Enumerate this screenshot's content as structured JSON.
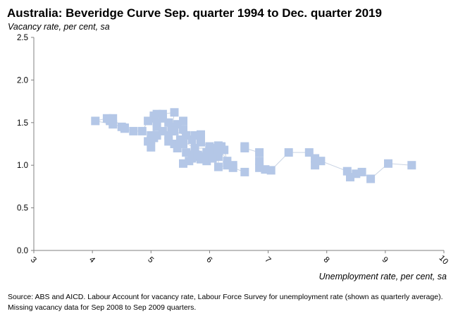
{
  "chart_data": {
    "type": "scatter",
    "title": "Australia: Beveridge Curve Sep. quarter 1994 to Dec. quarter 2019",
    "ylabel": "Vacancy rate, per cent, sa",
    "xlabel": "Unemployment rate, per cent, sa",
    "source": "Source: ABS and AICD.  Labour Account for vacancy rate, Labour Force Survey for unemployment rate (shown as quarterly average).  Missing vacancy data for Sep 2008 to Sep 2009 quarters.",
    "xlim": [
      3,
      10
    ],
    "ylim": [
      0,
      2.5
    ],
    "xticks": [
      3,
      4,
      5,
      6,
      7,
      8,
      9,
      10
    ],
    "yticks": [
      "0.0",
      "0.5",
      "1.0",
      "1.5",
      "2.0",
      "2.5"
    ],
    "grid": false,
    "marker_color": "#b4c7e7",
    "line_color": "#c9d3e3",
    "series": [
      {
        "segments": [
          [
            [
              9.45,
              1.0
            ],
            [
              9.05,
              1.02
            ],
            [
              8.75,
              0.84
            ],
            [
              8.6,
              0.92
            ],
            [
              8.5,
              0.9
            ],
            [
              8.4,
              0.86
            ],
            [
              8.35,
              0.93
            ],
            [
              7.9,
              1.05
            ],
            [
              7.8,
              1.08
            ],
            [
              7.8,
              1.0
            ],
            [
              7.7,
              1.15
            ],
            [
              7.35,
              1.15
            ],
            [
              7.05,
              0.94
            ],
            [
              6.95,
              0.95
            ],
            [
              6.85,
              0.97
            ],
            [
              6.85,
              1.05
            ],
            [
              6.85,
              1.15
            ],
            [
              6.6,
              1.2
            ],
            [
              6.6,
              1.22
            ]
          ],
          [
            [
              6.6,
              0.92
            ],
            [
              6.4,
              0.97
            ],
            [
              6.3,
              1.05
            ],
            [
              6.25,
              1.18
            ],
            [
              6.2,
              1.22
            ],
            [
              6.15,
              1.23
            ],
            [
              6.15,
              1.15
            ],
            [
              6.0,
              1.1
            ],
            [
              5.95,
              1.12
            ],
            [
              5.85,
              1.07
            ],
            [
              5.75,
              1.1
            ],
            [
              5.7,
              1.12
            ],
            [
              5.65,
              1.05
            ],
            [
              5.55,
              1.02
            ]
          ],
          [
            [
              5.55,
              1.25
            ],
            [
              5.45,
              1.2
            ],
            [
              5.4,
              1.25
            ],
            [
              5.3,
              1.28
            ],
            [
              5.35,
              1.4
            ],
            [
              5.4,
              1.62
            ],
            [
              5.2,
              1.6
            ],
            [
              5.1,
              1.6
            ],
            [
              5.05,
              1.58
            ],
            [
              5.05,
              1.55
            ],
            [
              5.1,
              1.45
            ],
            [
              5.0,
              1.35
            ],
            [
              5.0,
              1.3
            ],
            [
              4.95,
              1.28
            ],
            [
              5.0,
              1.21
            ],
            [
              5.05,
              1.32
            ],
            [
              5.1,
              1.35
            ],
            [
              5.2,
              1.4
            ],
            [
              5.3,
              1.35
            ],
            [
              5.35,
              1.45
            ],
            [
              5.45,
              1.48
            ],
            [
              5.55,
              1.52
            ],
            [
              5.55,
              1.42
            ],
            [
              5.6,
              1.35
            ],
            [
              5.7,
              1.3
            ],
            [
              5.75,
              1.35
            ],
            [
              5.85,
              1.36
            ],
            [
              5.85,
              1.27
            ],
            [
              6.0,
              1.22
            ],
            [
              6.0,
              1.18
            ],
            [
              6.05,
              1.15
            ],
            [
              5.95,
              1.05
            ],
            [
              5.9,
              1.1
            ],
            [
              6.1,
              1.2
            ],
            [
              6.15,
              1.1
            ],
            [
              6.15,
              0.98
            ],
            [
              6.3,
              1.0
            ],
            [
              6.4,
              1.0
            ],
            [
              6.15,
              1.18
            ],
            [
              6.0,
              1.2
            ],
            [
              5.75,
              1.2
            ],
            [
              5.6,
              1.15
            ],
            [
              5.7,
              1.08
            ],
            [
              5.8,
              1.12
            ],
            [
              5.95,
              1.15
            ],
            [
              6.05,
              1.08
            ],
            [
              5.5,
              1.3
            ],
            [
              5.6,
              1.35
            ],
            [
              5.4,
              1.4
            ],
            [
              5.3,
              1.5
            ],
            [
              5.2,
              1.55
            ],
            [
              5.1,
              1.5
            ],
            [
              4.95,
              1.52
            ],
            [
              4.85,
              1.4
            ],
            [
              4.7,
              1.4
            ],
            [
              4.55,
              1.43
            ],
            [
              4.5,
              1.45
            ],
            [
              4.35,
              1.55
            ],
            [
              4.3,
              1.52
            ],
            [
              4.25,
              1.55
            ],
            [
              4.05,
              1.52
            ],
            [
              4.35,
              1.48
            ],
            [
              4.55,
              1.44
            ]
          ]
        ]
      }
    ]
  }
}
